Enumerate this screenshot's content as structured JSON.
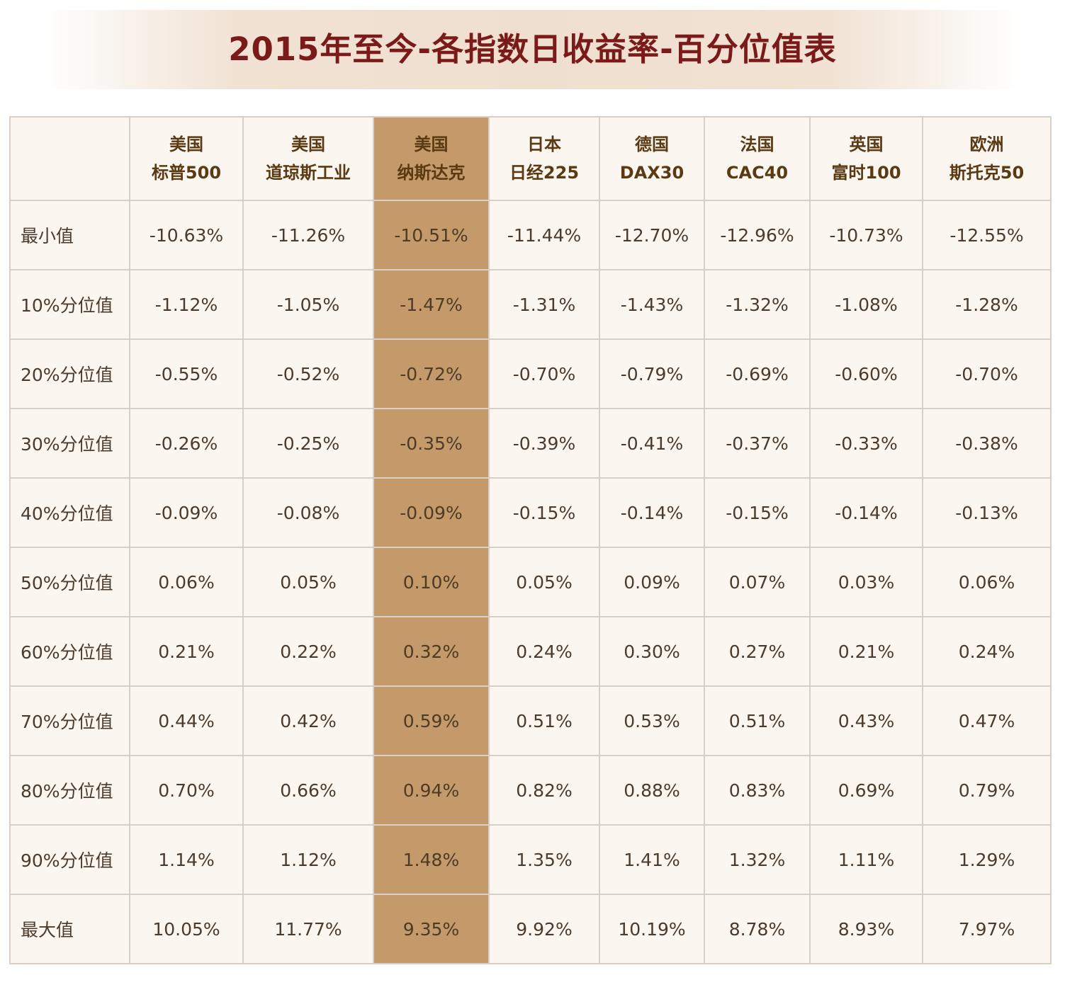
{
  "title": "2015年至今-各指数日收益率-百分位值表",
  "colors": {
    "title": "#7a1a1a",
    "highlight_column": "#c59a6b",
    "cell_bg": "#fcf6f1",
    "border": "#d9cfc4"
  },
  "highlight_column_index": 2,
  "headers": [
    {
      "line1": "美国",
      "line2": "标普500"
    },
    {
      "line1": "美国",
      "line2": "道琼斯工业"
    },
    {
      "line1": "美国",
      "line2": "纳斯达克"
    },
    {
      "line1": "日本",
      "line2": "日经225"
    },
    {
      "line1": "德国",
      "line2": "DAX30"
    },
    {
      "line1": "法国",
      "line2": "CAC40"
    },
    {
      "line1": "英国",
      "line2": "富时100"
    },
    {
      "line1": "欧洲",
      "line2": "斯托克50"
    }
  ],
  "rows": [
    {
      "label": "最小值",
      "cells": [
        "-10.63%",
        "-11.26%",
        "-10.51%",
        "-11.44%",
        "-12.70%",
        "-12.96%",
        "-10.73%",
        "-12.55%"
      ]
    },
    {
      "label": "10%分位值",
      "cells": [
        "-1.12%",
        "-1.05%",
        "-1.47%",
        "-1.31%",
        "-1.43%",
        "-1.32%",
        "-1.08%",
        "-1.28%"
      ]
    },
    {
      "label": "20%分位值",
      "cells": [
        "-0.55%",
        "-0.52%",
        "-0.72%",
        "-0.70%",
        "-0.79%",
        "-0.69%",
        "-0.60%",
        "-0.70%"
      ]
    },
    {
      "label": "30%分位值",
      "cells": [
        "-0.26%",
        "-0.25%",
        "-0.35%",
        "-0.39%",
        "-0.41%",
        "-0.37%",
        "-0.33%",
        "-0.38%"
      ]
    },
    {
      "label": "40%分位值",
      "cells": [
        "-0.09%",
        "-0.08%",
        "-0.09%",
        "-0.15%",
        "-0.14%",
        "-0.15%",
        "-0.14%",
        "-0.13%"
      ]
    },
    {
      "label": "50%分位值",
      "cells": [
        "0.06%",
        "0.05%",
        "0.10%",
        "0.05%",
        "0.09%",
        "0.07%",
        "0.03%",
        "0.06%"
      ]
    },
    {
      "label": "60%分位值",
      "cells": [
        "0.21%",
        "0.22%",
        "0.32%",
        "0.24%",
        "0.30%",
        "0.27%",
        "0.21%",
        "0.24%"
      ]
    },
    {
      "label": "70%分位值",
      "cells": [
        "0.44%",
        "0.42%",
        "0.59%",
        "0.51%",
        "0.53%",
        "0.51%",
        "0.43%",
        "0.47%"
      ]
    },
    {
      "label": "80%分位值",
      "cells": [
        "0.70%",
        "0.66%",
        "0.94%",
        "0.82%",
        "0.88%",
        "0.83%",
        "0.69%",
        "0.79%"
      ]
    },
    {
      "label": "90%分位值",
      "cells": [
        "1.14%",
        "1.12%",
        "1.48%",
        "1.35%",
        "1.41%",
        "1.32%",
        "1.11%",
        "1.29%"
      ]
    },
    {
      "label": "最大值",
      "cells": [
        "10.05%",
        "11.77%",
        "9.35%",
        "9.92%",
        "10.19%",
        "8.78%",
        "8.93%",
        "7.97%"
      ]
    }
  ],
  "chart_data": {
    "type": "table",
    "title": "2015年至今-各指数日收益率-百分位值表",
    "columns": [
      "美国 标普500",
      "美国 道琼斯工业",
      "美国 纳斯达克",
      "日本 日经225",
      "德国 DAX30",
      "法国 CAC40",
      "英国 富时100",
      "欧洲 斯托克50"
    ],
    "row_labels": [
      "最小值",
      "10%分位值",
      "20%分位值",
      "30%分位值",
      "40%分位值",
      "50%分位值",
      "60%分位值",
      "70%分位值",
      "80%分位值",
      "90%分位值",
      "最大值"
    ],
    "values": [
      [
        -10.63,
        -11.26,
        -10.51,
        -11.44,
        -12.7,
        -12.96,
        -10.73,
        -12.55
      ],
      [
        -1.12,
        -1.05,
        -1.47,
        -1.31,
        -1.43,
        -1.32,
        -1.08,
        -1.28
      ],
      [
        -0.55,
        -0.52,
        -0.72,
        -0.7,
        -0.79,
        -0.69,
        -0.6,
        -0.7
      ],
      [
        -0.26,
        -0.25,
        -0.35,
        -0.39,
        -0.41,
        -0.37,
        -0.33,
        -0.38
      ],
      [
        -0.09,
        -0.08,
        -0.09,
        -0.15,
        -0.14,
        -0.15,
        -0.14,
        -0.13
      ],
      [
        0.06,
        0.05,
        0.1,
        0.05,
        0.09,
        0.07,
        0.03,
        0.06
      ],
      [
        0.21,
        0.22,
        0.32,
        0.24,
        0.3,
        0.27,
        0.21,
        0.24
      ],
      [
        0.44,
        0.42,
        0.59,
        0.51,
        0.53,
        0.51,
        0.43,
        0.47
      ],
      [
        0.7,
        0.66,
        0.94,
        0.82,
        0.88,
        0.83,
        0.69,
        0.79
      ],
      [
        1.14,
        1.12,
        1.48,
        1.35,
        1.41,
        1.32,
        1.11,
        1.29
      ],
      [
        10.05,
        11.77,
        9.35,
        9.92,
        10.19,
        8.78,
        8.93,
        7.97
      ]
    ]
  }
}
